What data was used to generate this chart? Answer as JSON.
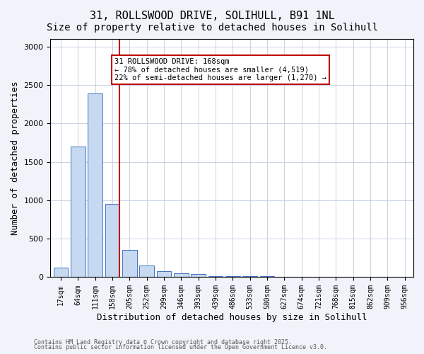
{
  "title_line1": "31, ROLLSWOOD DRIVE, SOLIHULL, B91 1NL",
  "title_line2": "Size of property relative to detached houses in Solihull",
  "xlabel": "Distribution of detached houses by size in Solihull",
  "ylabel": "Number of detached properties",
  "categories": [
    "17sqm",
    "64sqm",
    "111sqm",
    "158sqm",
    "205sqm",
    "252sqm",
    "299sqm",
    "346sqm",
    "393sqm",
    "439sqm",
    "486sqm",
    "533sqm",
    "580sqm",
    "627sqm",
    "674sqm",
    "721sqm",
    "768sqm",
    "815sqm",
    "862sqm",
    "909sqm",
    "956sqm"
  ],
  "values": [
    120,
    1700,
    2390,
    950,
    350,
    155,
    80,
    55,
    40,
    18,
    15,
    12,
    10,
    6,
    4,
    3,
    2,
    2,
    1,
    1,
    1
  ],
  "bar_color": "#c6d9f0",
  "bar_edge_color": "#4472c4",
  "highlight_index": 3,
  "vline_x": 3,
  "vline_color": "#c00000",
  "annotation_text": "31 ROLLSWOOD DRIVE: 168sqm\n← 78% of detached houses are smaller (4,519)\n22% of semi-detached houses are larger (1,270) →",
  "annotation_box_color": "#c00000",
  "ylim": [
    0,
    3100
  ],
  "yticks": [
    0,
    500,
    1000,
    1500,
    2000,
    2500,
    3000
  ],
  "footnote1": "Contains HM Land Registry data © Crown copyright and database right 2025.",
  "footnote2": "Contains public sector information licensed under the Open Government Licence v3.0.",
  "background_color": "#f0f4fa",
  "plot_bg_color": "#ffffff",
  "grid_color": "#c0cce0",
  "title_fontsize": 11,
  "subtitle_fontsize": 10,
  "tick_fontsize": 7,
  "label_fontsize": 9
}
